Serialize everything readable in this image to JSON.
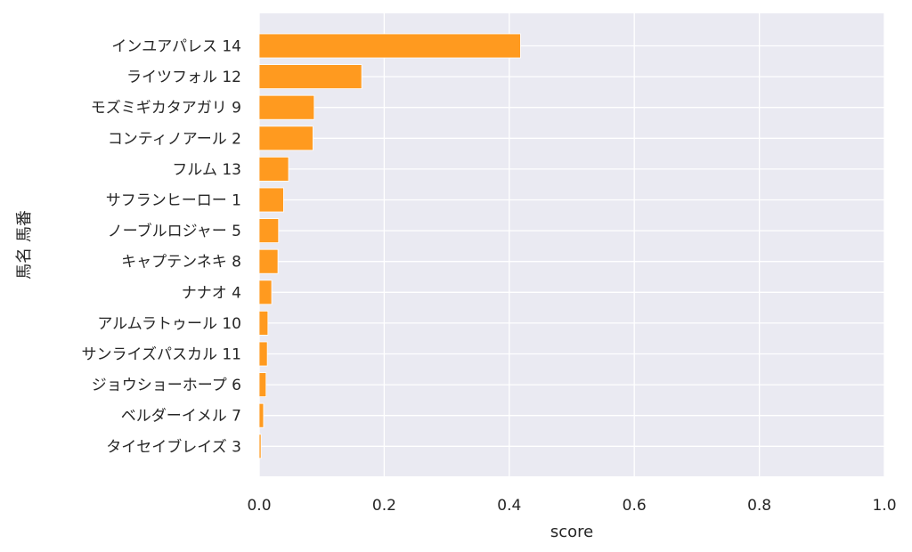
{
  "chart_data": {
    "type": "bar",
    "orientation": "horizontal",
    "categories": [
      "インユアパレス 14",
      "ライツフォル 12",
      "モズミギカタアガリ 9",
      "コンティノアール 2",
      "フルム 13",
      "サフランヒーロー 1",
      "ノーブルロジャー 5",
      "キャプテンネキ 8",
      "ナナオ 4",
      "アルムラトゥール 10",
      "サンライズパスカル 11",
      "ジョウショーホープ 6",
      "ベルダーイメル 7",
      "タイセイブレイズ 3"
    ],
    "values": [
      0.418,
      0.164,
      0.088,
      0.086,
      0.047,
      0.039,
      0.031,
      0.03,
      0.02,
      0.014,
      0.013,
      0.011,
      0.007,
      0.003
    ],
    "xlabel": "score",
    "ylabel": "馬名 馬番",
    "xlim": [
      0,
      1.0
    ],
    "xticks": [
      "0.0",
      "0.2",
      "0.4",
      "0.6",
      "0.8",
      "1.0"
    ],
    "grid": true,
    "bar_color": "#ff9a1f",
    "background_color": "#eaeaf2"
  }
}
